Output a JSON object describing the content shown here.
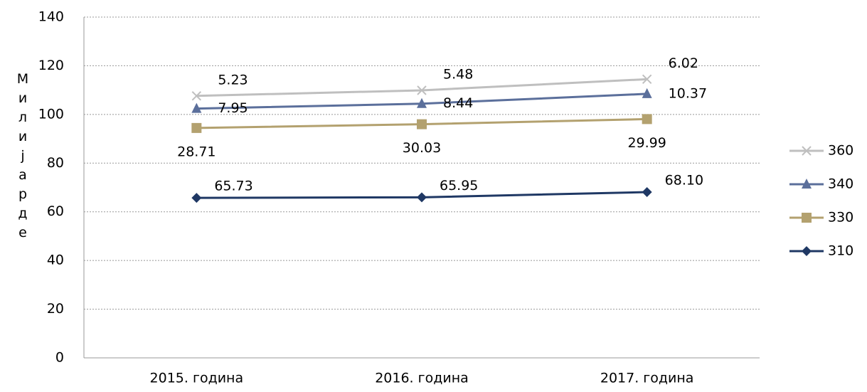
{
  "chart_data": {
    "type": "line",
    "stacked": true,
    "y_label": "Милијарде",
    "categories": [
      "2015. година",
      "2016. година",
      "2017. година"
    ],
    "series": [
      {
        "name": "310",
        "color": "#1f3864",
        "marker": "diamond",
        "values": [
          65.73,
          65.95,
          68.1
        ],
        "value_labels": [
          "65.73",
          "65.95",
          "68.10"
        ]
      },
      {
        "name": "330",
        "color": "#b3a16f",
        "marker": "square",
        "values": [
          28.71,
          30.03,
          29.99
        ],
        "value_labels": [
          "28.71",
          "30.03",
          "29.99"
        ]
      },
      {
        "name": "340",
        "color": "#5b6f9b",
        "marker": "triangle",
        "values": [
          7.95,
          8.44,
          10.37
        ],
        "value_labels": [
          "7.95",
          "8.44",
          "10.37"
        ]
      },
      {
        "name": "360",
        "color": "#bfbfbf",
        "marker": "x",
        "values": [
          5.23,
          5.48,
          6.02
        ],
        "value_labels": [
          "5.23",
          "5.48",
          "6.02"
        ]
      }
    ],
    "ylim": [
      0,
      140
    ],
    "yticks": [
      0,
      20,
      40,
      60,
      80,
      100,
      120,
      140
    ],
    "grid": true,
    "legend": "right"
  }
}
